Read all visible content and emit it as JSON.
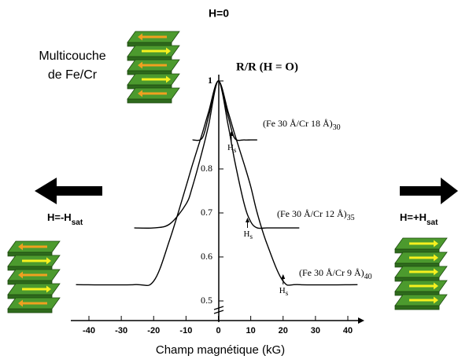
{
  "chart_data": {
    "type": "line",
    "title": "R/R (H = O)",
    "x_label": "Champ magnétique (kG)",
    "x": [
      -44,
      -26,
      -20,
      -15,
      -10,
      -8,
      -5,
      -3,
      0,
      3,
      5,
      8,
      10,
      12,
      15,
      20,
      25,
      43
    ],
    "series": [
      {
        "name": "(Fe 30 Å/Cr 18 Å)",
        "name_sub": "30",
        "color": "#000000",
        "values": [
          null,
          null,
          null,
          null,
          null,
          0.866,
          0.87,
          0.92,
          1.0,
          0.92,
          0.87,
          0.866,
          0.866,
          0.866,
          null,
          null,
          null,
          null
        ]
      },
      {
        "name": "(Fe 30 Å/Cr 12 Å)",
        "name_sub": "35",
        "color": "#000000",
        "values": [
          null,
          0.666,
          0.666,
          0.675,
          0.72,
          0.76,
          0.84,
          0.9,
          1.0,
          0.9,
          0.82,
          0.72,
          0.68,
          0.666,
          0.666,
          0.666,
          0.666,
          null
        ]
      },
      {
        "name": "(Fe 30 Å/Cr 9 Å)",
        "name_sub": "40",
        "color": "#000000",
        "values": [
          0.537,
          0.537,
          0.545,
          0.64,
          0.76,
          0.81,
          0.88,
          0.93,
          1.0,
          0.93,
          0.88,
          0.81,
          0.76,
          0.7,
          0.63,
          0.545,
          0.537,
          0.537
        ]
      }
    ],
    "hs_label": "H",
    "hs_sub": "s",
    "hs_values": [
      4,
      9,
      20
    ],
    "xlim": [
      -44,
      44
    ],
    "xticks": [
      -40,
      -30,
      -20,
      -10,
      0,
      10,
      20,
      30,
      40
    ],
    "ylim": [
      0.5,
      1.0
    ],
    "yticks": [
      0.5,
      0.6,
      0.7,
      0.8,
      1
    ],
    "annotations": {
      "h_zero": "H=0",
      "multilayer_1": "Multicouche",
      "multilayer_2": "de Fe/Cr",
      "h_minus": "H=-H",
      "h_minus_sub": "sat",
      "h_plus": "H=+H",
      "h_plus_sub": "sat"
    }
  }
}
